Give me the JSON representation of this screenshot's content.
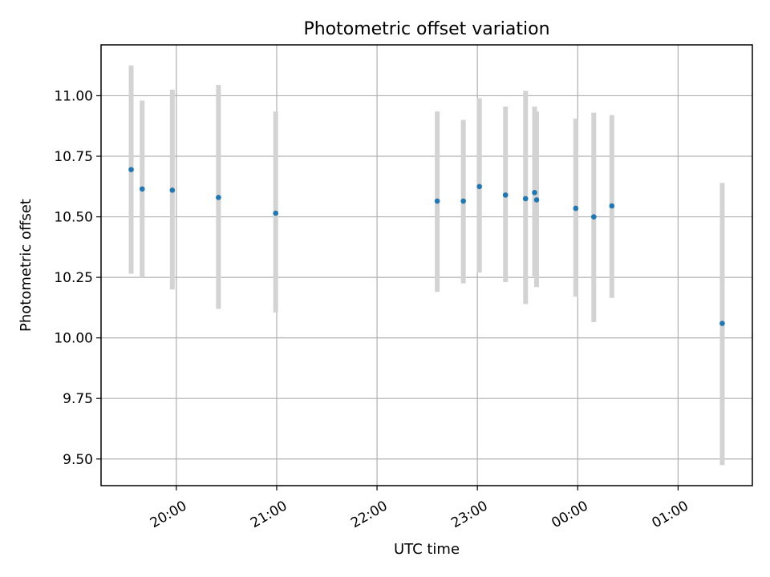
{
  "chart_data": {
    "type": "scatter",
    "title": "Photometric offset variation",
    "xlabel": "UTC time",
    "ylabel": "Photometric offset",
    "x_ticks": [
      "20:00",
      "21:00",
      "22:00",
      "23:00",
      "00:00",
      "01:00"
    ],
    "x_tick_hours": [
      20,
      21,
      22,
      23,
      24,
      25
    ],
    "y_ticks": [
      "9.50",
      "9.75",
      "10.00",
      "10.25",
      "10.50",
      "10.75",
      "11.00"
    ],
    "y_tick_values": [
      9.5,
      9.75,
      10.0,
      10.25,
      10.5,
      10.75,
      11.0
    ],
    "xlim": [
      19.25,
      25.74
    ],
    "ylim": [
      9.39,
      11.21
    ],
    "grid": true,
    "marker_color": "#1f77b4",
    "errorbar_color": "#d3d3d3",
    "points": [
      {
        "time": "19:34",
        "hour": 19.55,
        "y": 10.695,
        "lo": 10.265,
        "hi": 11.125
      },
      {
        "time": "19:40",
        "hour": 19.66,
        "y": 10.615,
        "lo": 10.25,
        "hi": 10.98
      },
      {
        "time": "19:57",
        "hour": 19.96,
        "y": 10.61,
        "lo": 10.2,
        "hi": 11.025
      },
      {
        "time": "20:25",
        "hour": 20.42,
        "y": 10.58,
        "lo": 10.12,
        "hi": 11.045
      },
      {
        "time": "20:59",
        "hour": 20.99,
        "y": 10.515,
        "lo": 10.105,
        "hi": 10.935
      },
      {
        "time": "22:36",
        "hour": 22.6,
        "y": 10.565,
        "lo": 10.19,
        "hi": 10.935
      },
      {
        "time": "22:52",
        "hour": 22.86,
        "y": 10.565,
        "lo": 10.225,
        "hi": 10.9
      },
      {
        "time": "23:01",
        "hour": 23.02,
        "y": 10.625,
        "lo": 10.27,
        "hi": 10.99
      },
      {
        "time": "23:17",
        "hour": 23.28,
        "y": 10.59,
        "lo": 10.23,
        "hi": 10.955
      },
      {
        "time": "23:29",
        "hour": 23.48,
        "y": 10.575,
        "lo": 10.14,
        "hi": 11.02
      },
      {
        "time": "23:34",
        "hour": 23.57,
        "y": 10.6,
        "lo": 10.255,
        "hi": 10.955
      },
      {
        "time": "23:35",
        "hour": 23.59,
        "y": 10.57,
        "lo": 10.21,
        "hi": 10.935
      },
      {
        "time": "23:58",
        "hour": 23.98,
        "y": 10.535,
        "lo": 10.17,
        "hi": 10.905
      },
      {
        "time": "00:10",
        "hour": 24.16,
        "y": 10.5,
        "lo": 10.065,
        "hi": 10.93
      },
      {
        "time": "00:20",
        "hour": 24.34,
        "y": 10.545,
        "lo": 10.165,
        "hi": 10.92
      },
      {
        "time": "01:27",
        "hour": 25.44,
        "y": 10.06,
        "lo": 9.475,
        "hi": 10.64
      }
    ]
  }
}
